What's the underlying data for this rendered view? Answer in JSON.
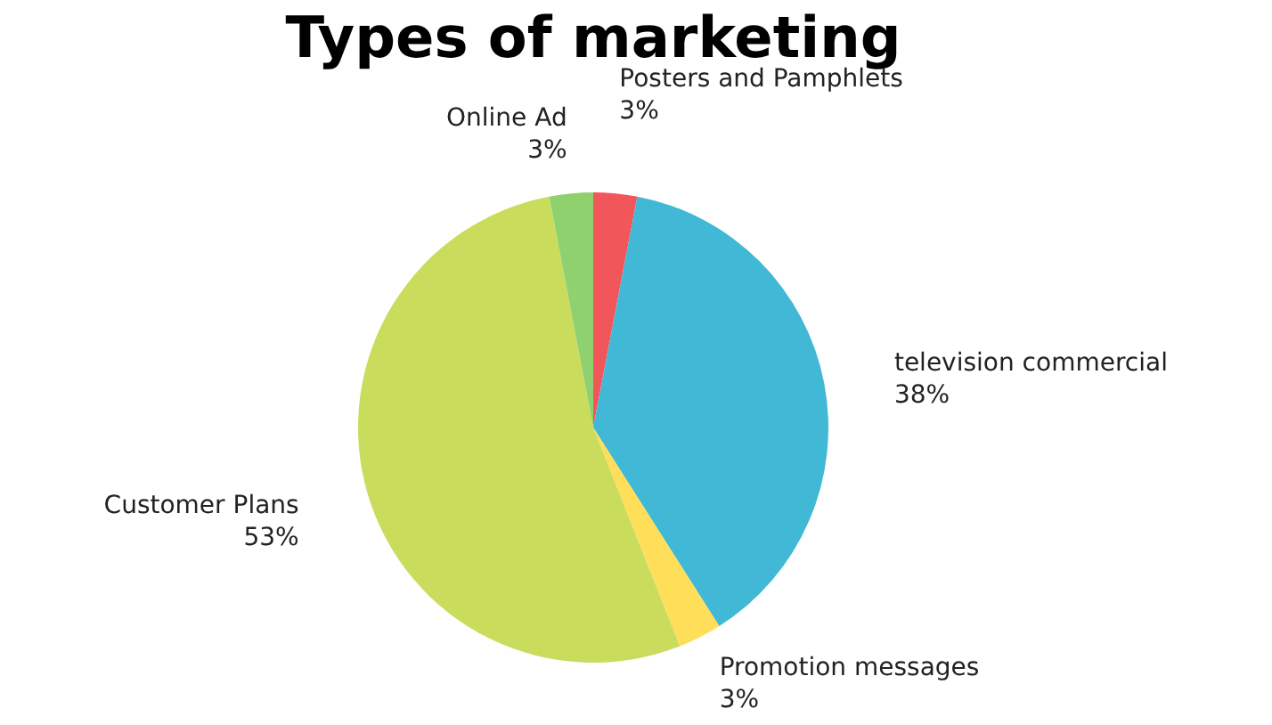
{
  "chart_data": {
    "type": "pie",
    "title": "Types of marketing",
    "categories": [
      "Posters and Pamphlets",
      "television commercial",
      "Promotion messages",
      "Customer Plans",
      "Online Ad"
    ],
    "values": [
      3,
      38,
      3,
      53,
      3
    ],
    "value_labels": [
      "3%",
      "38%",
      "3%",
      "53%",
      "3%"
    ],
    "colors": [
      "#f0565a",
      "#41b8d5",
      "#ffde59",
      "#c9dc5c",
      "#8fd16e"
    ]
  }
}
